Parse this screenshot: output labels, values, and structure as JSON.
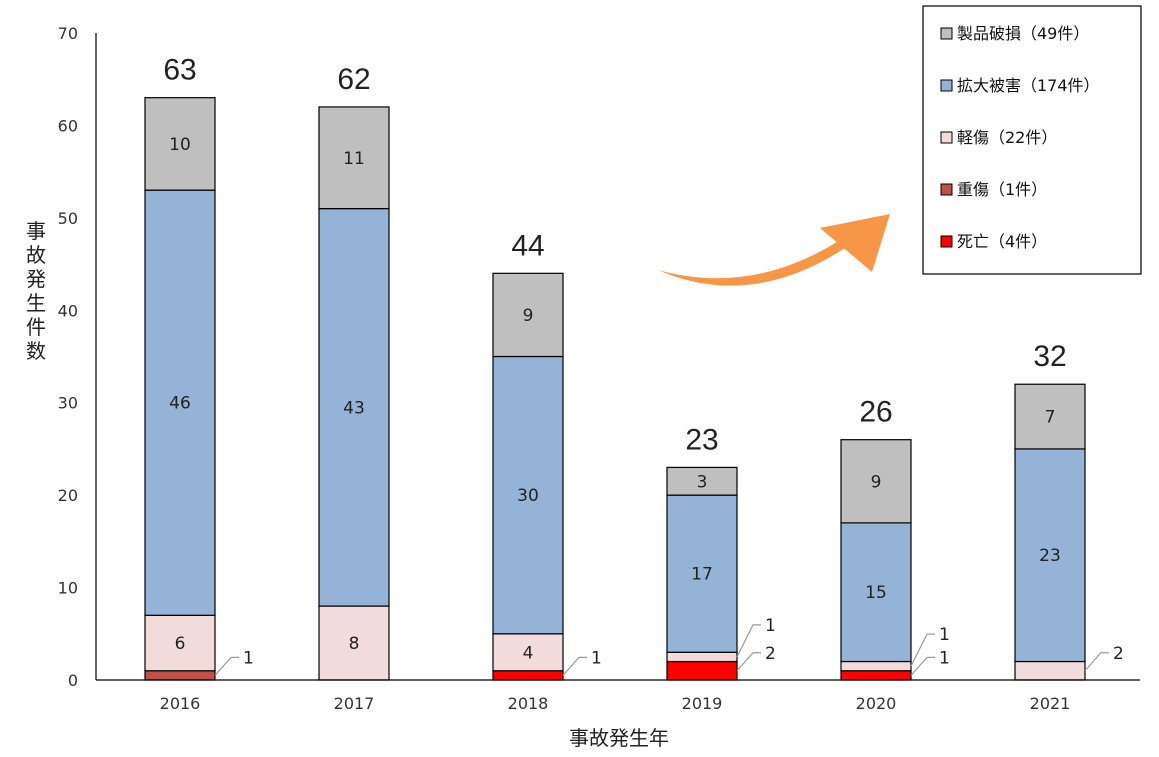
{
  "chart_data": {
    "type": "bar",
    "stacked": true,
    "categories": [
      "2016",
      "2017",
      "2018",
      "2019",
      "2020",
      "2021"
    ],
    "series": [
      {
        "name": "死亡（4件）",
        "color": "#ff0000",
        "values": [
          0,
          0,
          1,
          2,
          1,
          0
        ]
      },
      {
        "name": "重傷（1件）",
        "color": "#c0504d",
        "values": [
          1,
          0,
          0,
          0,
          0,
          0
        ]
      },
      {
        "name": "軽傷（22件）",
        "color": "#f2dcdb",
        "values": [
          6,
          8,
          4,
          1,
          1,
          2
        ]
      },
      {
        "name": "拡大被害（174件）",
        "color": "#95b3d7",
        "values": [
          46,
          43,
          30,
          17,
          15,
          23
        ]
      },
      {
        "name": "製品破損（49件）",
        "color": "#bfbfbf",
        "values": [
          10,
          11,
          9,
          3,
          9,
          7
        ]
      }
    ],
    "totals": [
      63,
      62,
      44,
      23,
      26,
      32
    ],
    "xlabel": "事故発生年",
    "ylabel": "事故発生件数",
    "ylim": [
      0,
      70
    ],
    "yticks": [
      0,
      10,
      20,
      30,
      40,
      50,
      60,
      70
    ],
    "legend_position": "top-right",
    "legend_order": [
      "製品破損（49件）",
      "拡大被害（174件）",
      "軽傷（22件）",
      "重傷（1件）",
      "死亡（4件）"
    ],
    "grid": false,
    "annotation": "orange curved arrow pointing up-right toward legend"
  }
}
